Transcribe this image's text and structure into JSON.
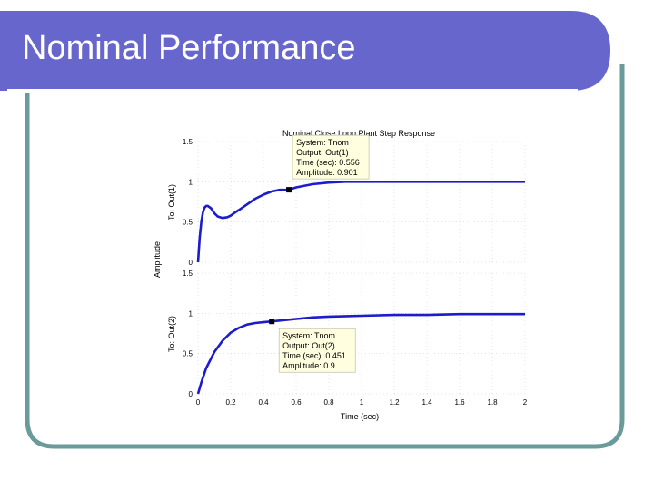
{
  "slide": {
    "title": "Nominal Performance",
    "colors": {
      "title_bar": "#6666cc",
      "frame_border": "#6b9a9a",
      "series": "#1c1ccc",
      "datatip_bg": "#ffffe0"
    }
  },
  "chart_data": {
    "type": "line",
    "title": "Nominal Close Loop Plant Step Response",
    "xlabel": "Time (sec)",
    "ylabel": "Amplitude",
    "xlim": [
      0,
      2
    ],
    "x_ticks": [
      "0",
      "0.2",
      "0.4",
      "0.6",
      "0.8",
      "1",
      "1.2",
      "1.4",
      "1.6",
      "1.8",
      "2"
    ],
    "grid": true,
    "panels": [
      {
        "ylabel": "To: Out(1)",
        "ylim": [
          0,
          1.5
        ],
        "y_ticks": [
          "0",
          "0.5",
          "1",
          "1.5"
        ],
        "series": [
          {
            "x": [
              0,
              0.01,
              0.02,
              0.03,
              0.04,
              0.05,
              0.06,
              0.08,
              0.1,
              0.12,
              0.15,
              0.18,
              0.2,
              0.22,
              0.25,
              0.3,
              0.35,
              0.4,
              0.45,
              0.5,
              0.556,
              0.6,
              0.7,
              0.8,
              0.9,
              1.0,
              1.2,
              1.4,
              1.6,
              1.8,
              2.0
            ],
            "y": [
              0,
              0.3,
              0.5,
              0.62,
              0.68,
              0.7,
              0.7,
              0.67,
              0.61,
              0.57,
              0.55,
              0.56,
              0.58,
              0.61,
              0.65,
              0.72,
              0.79,
              0.84,
              0.88,
              0.9,
              0.901,
              0.93,
              0.97,
              0.99,
              1.0,
              1.0,
              1.0,
              1.0,
              1.0,
              1.0,
              1.0
            ]
          }
        ],
        "datatip": {
          "x": 0.556,
          "y": 0.901,
          "lines": [
            "System: Tnom",
            "Output: Out(1)",
            "Time (sec): 0.556",
            "Amplitude: 0.901"
          ]
        }
      },
      {
        "ylabel": "To: Out(2)",
        "ylim": [
          0,
          1.5
        ],
        "y_ticks": [
          "0",
          "0.5",
          "1",
          "1.5"
        ],
        "series": [
          {
            "x": [
              0,
              0.02,
              0.05,
              0.1,
              0.15,
              0.2,
              0.25,
              0.3,
              0.35,
              0.4,
              0.451,
              0.5,
              0.6,
              0.7,
              0.8,
              1.0,
              1.2,
              1.4,
              1.6,
              1.8,
              2.0
            ],
            "y": [
              0,
              0.14,
              0.32,
              0.52,
              0.66,
              0.76,
              0.82,
              0.86,
              0.88,
              0.89,
              0.9,
              0.91,
              0.93,
              0.95,
              0.96,
              0.97,
              0.98,
              0.98,
              0.99,
              0.99,
              0.99
            ]
          }
        ],
        "datatip": {
          "x": 0.451,
          "y": 0.9,
          "lines": [
            "System: Tnom",
            "Output: Out(2)",
            "Time (sec): 0.451",
            "Amplitude: 0.9"
          ]
        }
      }
    ]
  }
}
